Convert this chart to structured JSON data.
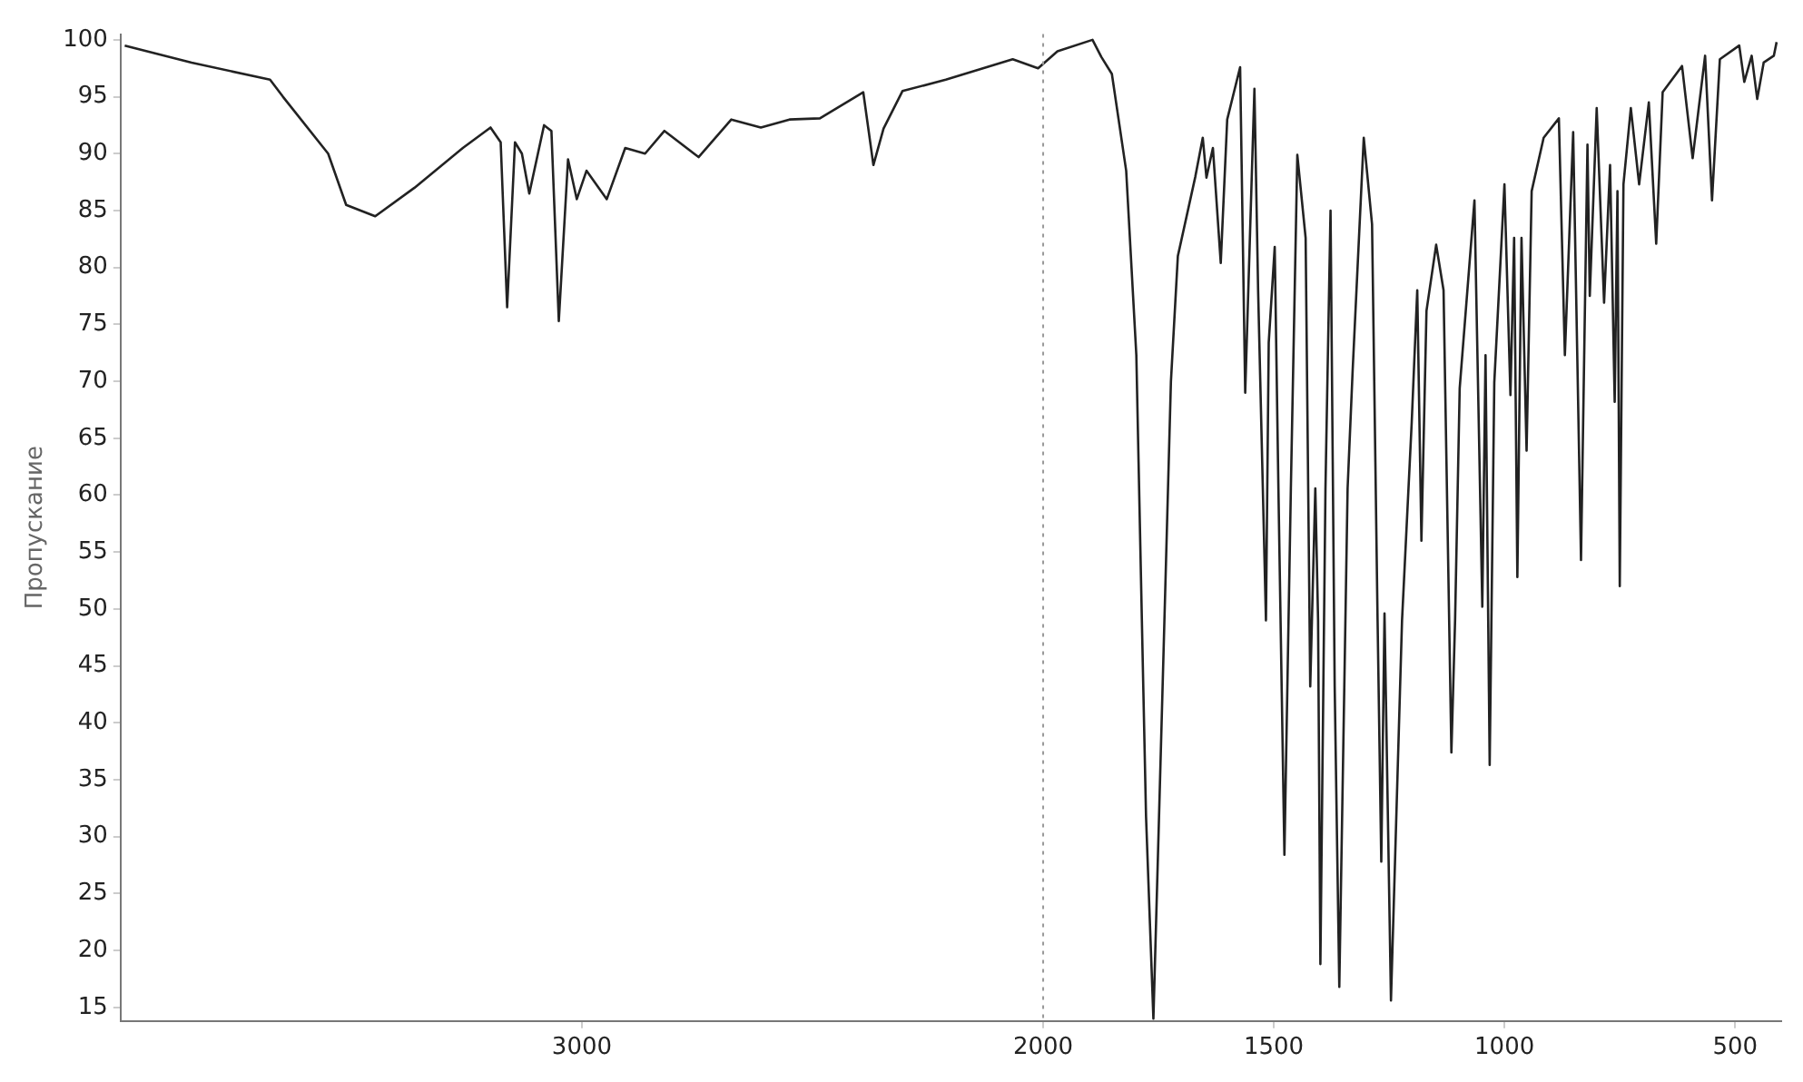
{
  "chart_data": {
    "type": "line",
    "ylabel": "Пропускание",
    "xlim": [
      4000,
      400
    ],
    "xticks": [
      3000,
      2000,
      1500,
      1000,
      500
    ],
    "ylim": [
      13.8,
      100.5
    ],
    "yticks": [
      15,
      20,
      25,
      30,
      35,
      40,
      45,
      50,
      55,
      60,
      65,
      70,
      75,
      80,
      85,
      90,
      95,
      100
    ],
    "grid": false,
    "legend": false,
    "marker": "none",
    "line_style": "solid",
    "ref_lines": [
      {
        "axis": "x",
        "value": 2000,
        "color": "#999999",
        "line_style": "dotted"
      }
    ],
    "series": [
      {
        "color": "#222222",
        "x": [
          3991,
          3846,
          3676,
          3648,
          3550,
          3511,
          3448,
          3363,
          3258,
          3198,
          3176,
          3162,
          3145,
          3130,
          3114,
          3082,
          3066,
          3050,
          3030,
          3011,
          2990,
          2946,
          2906,
          2863,
          2821,
          2747,
          2676,
          2612,
          2550,
          2484,
          2390,
          2368,
          2346,
          2305,
          2211,
          2066,
          2011,
          1969,
          1893,
          1874,
          1851,
          1820,
          1798,
          1786,
          1777,
          1761,
          1750,
          1739,
          1723,
          1708,
          1670,
          1654,
          1646,
          1632,
          1615,
          1601,
          1573,
          1562,
          1542,
          1534,
          1517,
          1511,
          1498,
          1490,
          1477,
          1463,
          1449,
          1431,
          1421,
          1410,
          1404,
          1399,
          1388,
          1377,
          1368,
          1358,
          1340,
          1329,
          1305,
          1287,
          1275,
          1267,
          1260,
          1246,
          1222,
          1201,
          1189,
          1180,
          1169,
          1148,
          1132,
          1115,
          1107,
          1097,
          1065,
          1048,
          1041,
          1032,
          1022,
          1000,
          987,
          979,
          972,
          963,
          952,
          941,
          915,
          882,
          869,
          851,
          834,
          820,
          815,
          800,
          784,
          771,
          761,
          755,
          750,
          742,
          726,
          708,
          687,
          671,
          657,
          615,
          592,
          565,
          550,
          533,
          491,
          480,
          464,
          452,
          438,
          416,
          410
        ],
        "values": [
          99.5,
          98,
          96.5,
          95,
          90,
          85.5,
          84.5,
          87,
          90.5,
          92.3,
          91,
          76.5,
          91,
          90,
          86.5,
          92.5,
          92,
          75.3,
          89.5,
          86,
          88.5,
          86,
          90.5,
          90,
          92,
          89.7,
          93,
          92.3,
          93,
          93.1,
          95.4,
          89,
          92.2,
          95.5,
          96.5,
          98.3,
          97.5,
          99,
          100,
          98.5,
          97,
          88.5,
          72.3,
          49,
          31.8,
          14,
          30,
          46.2,
          70,
          81,
          88,
          91.4,
          87.9,
          90.5,
          80.4,
          93,
          97.6,
          69,
          95.7,
          78,
          49,
          73.4,
          81.8,
          60.6,
          28.4,
          60.6,
          89.9,
          82.6,
          43.2,
          60.6,
          49,
          18.8,
          60.6,
          85,
          43.2,
          16.8,
          60.6,
          71,
          91.4,
          83.8,
          49,
          27.8,
          49.6,
          15.6,
          49,
          66.4,
          78,
          56,
          76.2,
          82,
          78,
          37.4,
          49,
          69.4,
          85.9,
          50.2,
          72.3,
          36.3,
          69.9,
          87.3,
          68.8,
          82.6,
          52.8,
          82.6,
          63.9,
          86.7,
          91.4,
          93.1,
          72.3,
          91.9,
          54.3,
          90.8,
          77.5,
          94,
          76.9,
          89,
          68.2,
          86.7,
          52,
          87.3,
          94,
          87.3,
          94.5,
          82.1,
          95.4,
          97.7,
          89.6,
          98.6,
          85.9,
          98.3,
          99.5,
          96.3,
          98.6,
          94.8,
          98,
          98.6,
          99.8
        ]
      }
    ]
  }
}
